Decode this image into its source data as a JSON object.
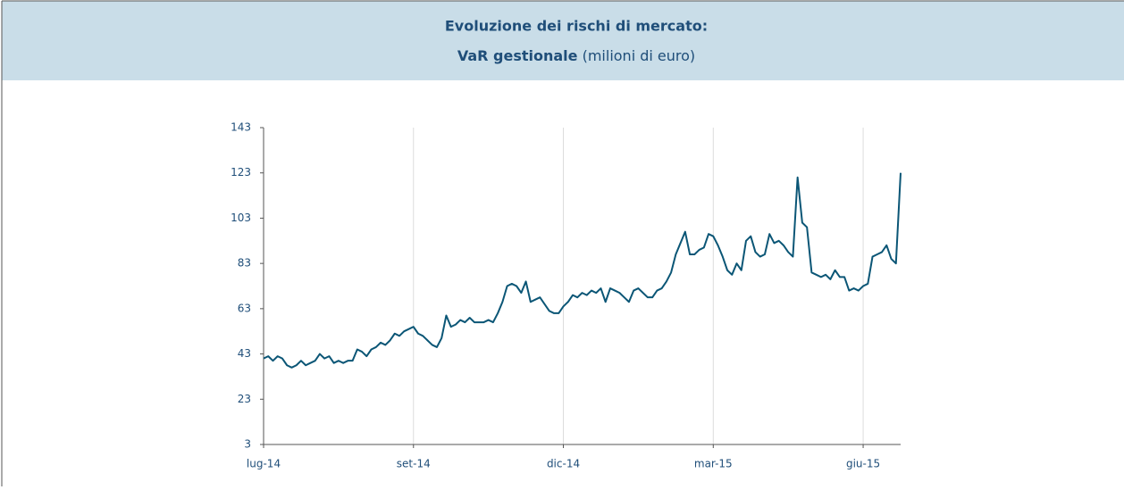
{
  "chart_data": {
    "type": "line",
    "title": "Evoluzione dei rischi di mercato:",
    "subtitle": "VaR gestionale",
    "unit": "(milioni di euro)",
    "categories": [
      "lug-14",
      null,
      null,
      null,
      null,
      null,
      null,
      null,
      null,
      null,
      null,
      null,
      null,
      null,
      null,
      null,
      null,
      null,
      null,
      null,
      null,
      null,
      null,
      null,
      null,
      null,
      null,
      null,
      null,
      null,
      null,
      null,
      "set-14",
      null,
      null,
      null,
      null,
      null,
      null,
      null,
      null,
      null,
      null,
      null,
      null,
      null,
      null,
      null,
      null,
      null,
      null,
      null,
      null,
      null,
      null,
      null,
      null,
      null,
      null,
      null,
      null,
      null,
      null,
      null,
      "dic-14",
      null,
      null,
      null,
      null,
      null,
      null,
      null,
      null,
      null,
      null,
      null,
      null,
      null,
      null,
      null,
      null,
      null,
      null,
      null,
      null,
      null,
      null,
      null,
      null,
      null,
      null,
      null,
      null,
      null,
      null,
      null,
      "mar-15",
      null,
      null,
      null,
      null,
      null,
      null,
      null,
      null,
      null,
      null,
      null,
      null,
      null,
      null,
      null,
      null,
      null,
      null,
      null,
      null,
      null,
      null,
      null,
      null,
      null,
      null,
      null,
      null,
      null,
      null,
      null,
      "giu-15",
      null,
      null,
      null,
      null,
      null,
      null,
      null,
      null
    ],
    "series": [
      {
        "name": "VaR gestionale",
        "color": "#0b5676",
        "values": [
          41,
          42,
          40,
          42,
          41,
          38,
          37,
          38,
          40,
          38,
          39,
          40,
          43,
          41,
          42,
          39,
          40,
          39,
          40,
          40,
          45,
          44,
          42,
          45,
          46,
          48,
          47,
          49,
          52,
          51,
          53,
          54,
          55,
          52,
          51,
          49,
          47,
          46,
          50,
          60,
          55,
          56,
          58,
          57,
          59,
          57,
          57,
          57,
          58,
          57,
          61,
          66,
          73,
          74,
          73,
          70,
          75,
          66,
          67,
          68,
          65,
          62,
          61,
          61,
          64,
          66,
          69,
          68,
          70,
          69,
          71,
          70,
          72,
          66,
          72,
          71,
          70,
          68,
          66,
          71,
          72,
          70,
          68,
          68,
          71,
          72,
          75,
          79,
          87,
          92,
          97,
          87,
          87,
          89,
          90,
          96,
          95,
          91,
          86,
          80,
          78,
          83,
          80,
          93,
          95,
          88,
          86,
          87,
          96,
          92,
          93,
          91,
          88,
          86,
          121,
          101,
          99,
          79,
          78,
          77,
          78,
          76,
          80,
          77,
          77,
          71,
          72,
          71,
          73,
          74,
          86,
          87,
          88,
          91,
          85,
          83,
          123
        ]
      }
    ],
    "ylim": [
      3,
      143
    ],
    "yticks": [
      3,
      23,
      43,
      63,
      83,
      103,
      123,
      143
    ],
    "grid": true
  }
}
